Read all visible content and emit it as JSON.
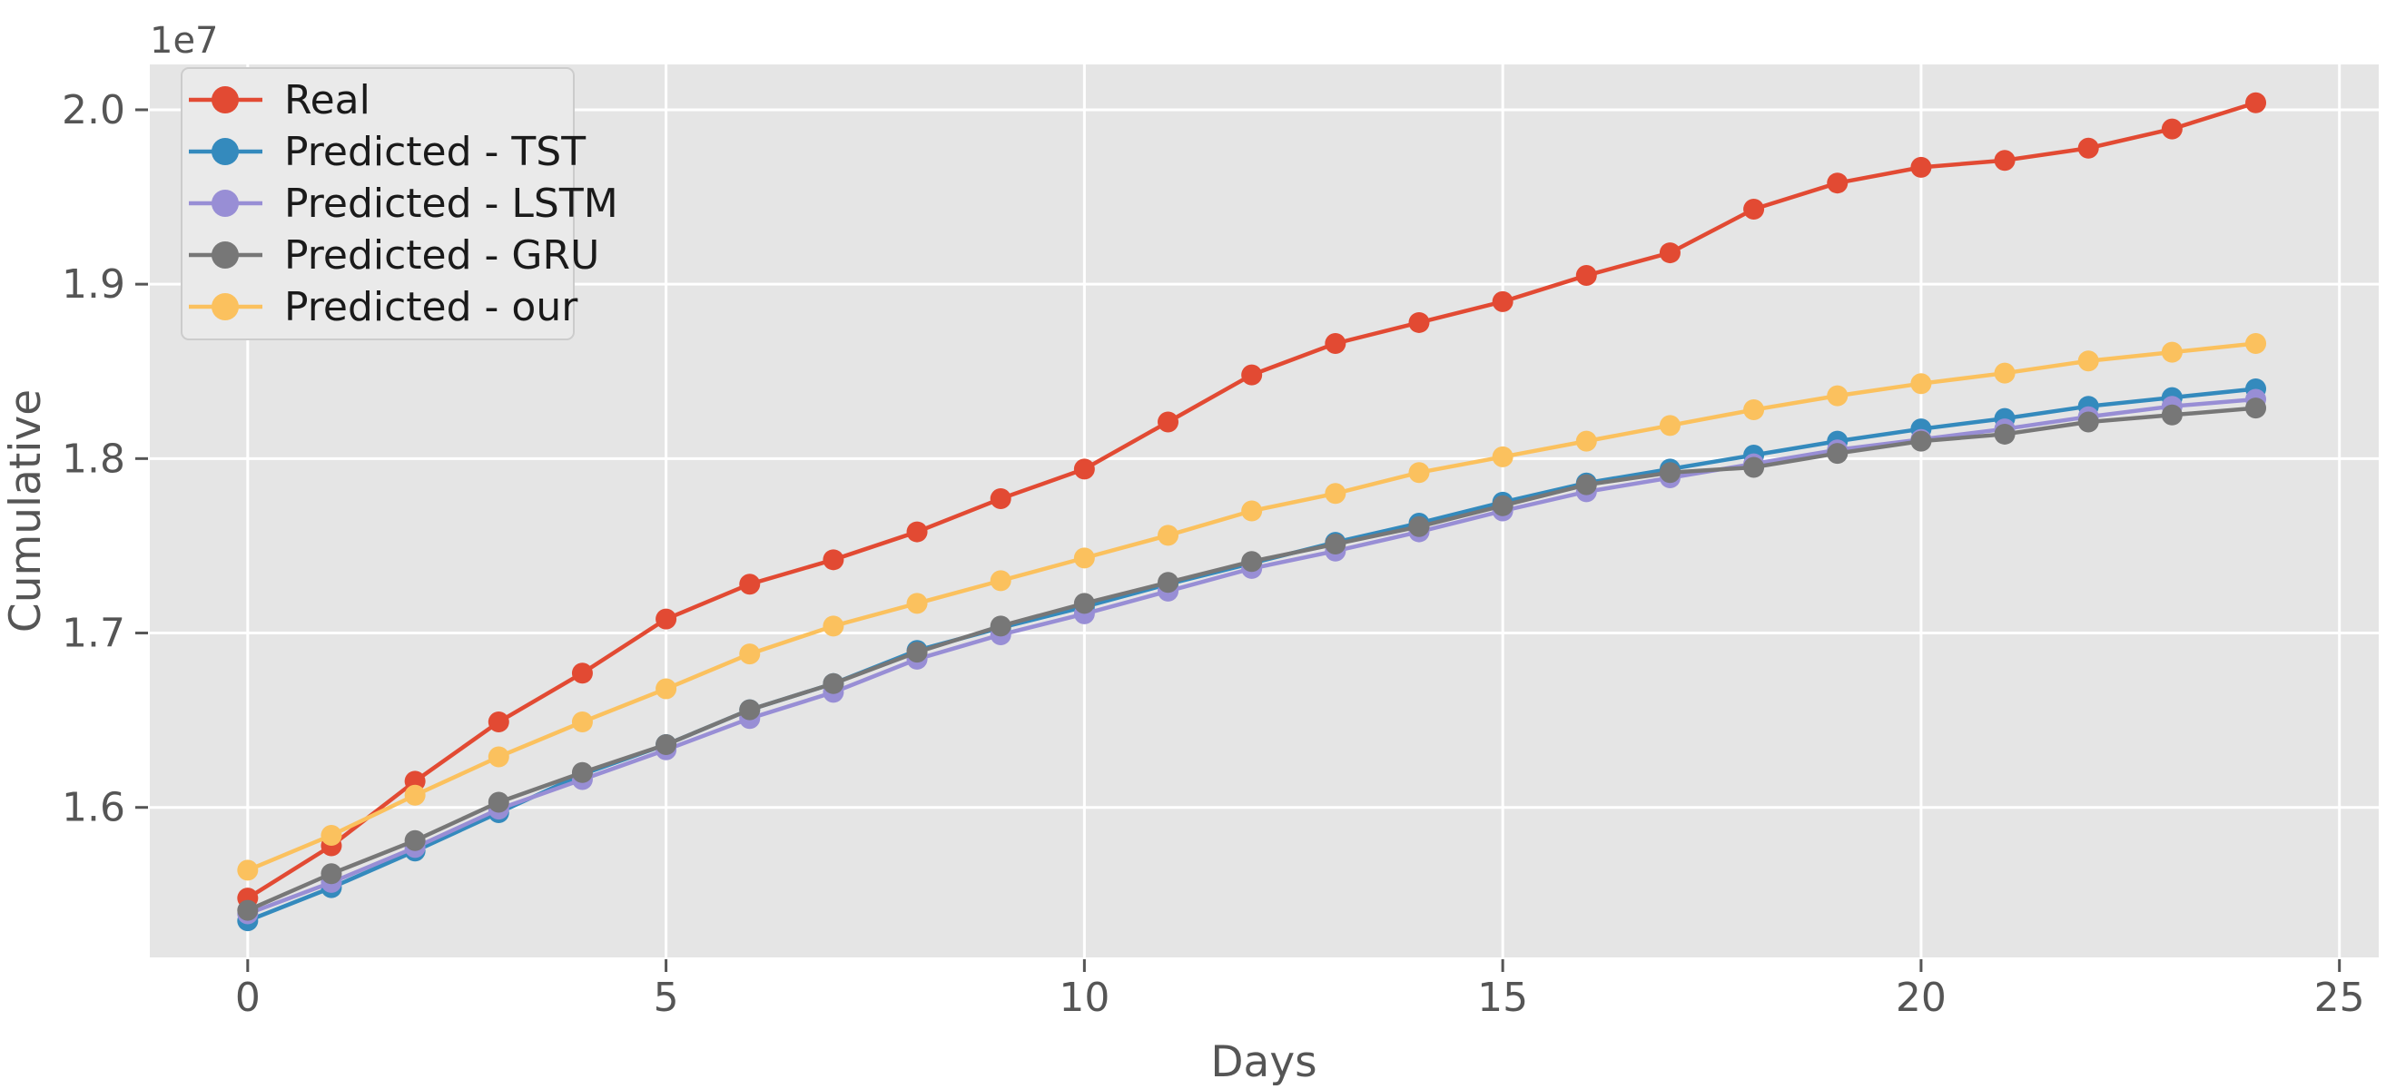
{
  "figure": {
    "offset_label": "1e7",
    "background": "#ffffff",
    "plot_background": "#e5e5e5",
    "grid_color": "#ffffff",
    "tick_color": "#555555",
    "legend_background": "#eaeaea",
    "legend_border": "#cccccc"
  },
  "chart_data": {
    "type": "line",
    "title": "",
    "xlabel": "Days",
    "ylabel": "Cumulative",
    "y_offset_factor": "1e7",
    "grid": true,
    "legend_position": "upper left",
    "x": [
      0,
      1,
      2,
      3,
      4,
      5,
      6,
      7,
      8,
      9,
      10,
      11,
      12,
      13,
      14,
      15,
      16,
      17,
      18,
      19,
      20,
      21,
      22,
      23,
      24
    ],
    "x_ticks": [
      0,
      5,
      10,
      15,
      20,
      25
    ],
    "y_ticks": [
      1.6,
      1.7,
      1.8,
      1.9,
      2.0
    ],
    "xlim": [
      -1.17,
      25.47
    ],
    "ylim": [
      1.514,
      2.026
    ],
    "marker": "circle",
    "series": [
      {
        "name": "Real",
        "color": "#E24A33",
        "values": [
          1.548,
          1.578,
          1.615,
          1.649,
          1.677,
          1.708,
          1.728,
          1.742,
          1.758,
          1.777,
          1.794,
          1.821,
          1.848,
          1.866,
          1.878,
          1.89,
          1.905,
          1.918,
          1.943,
          1.958,
          1.967,
          1.971,
          1.978,
          1.989,
          2.004
        ]
      },
      {
        "name": "Predicted - TST",
        "color": "#348ABD",
        "values": [
          1.535,
          1.554,
          1.575,
          1.597,
          1.619,
          1.636,
          1.656,
          1.671,
          1.69,
          1.703,
          1.715,
          1.728,
          1.74,
          1.752,
          1.763,
          1.775,
          1.786,
          1.794,
          1.802,
          1.81,
          1.817,
          1.823,
          1.83,
          1.835,
          1.84
        ]
      },
      {
        "name": "Predicted - LSTM",
        "color": "#988ED5",
        "values": [
          1.539,
          1.557,
          1.577,
          1.599,
          1.616,
          1.633,
          1.651,
          1.666,
          1.685,
          1.699,
          1.711,
          1.724,
          1.737,
          1.747,
          1.758,
          1.77,
          1.781,
          1.789,
          1.797,
          1.805,
          1.811,
          1.817,
          1.824,
          1.83,
          1.834
        ]
      },
      {
        "name": "Predicted - GRU",
        "color": "#777777",
        "values": [
          1.541,
          1.562,
          1.581,
          1.603,
          1.62,
          1.636,
          1.656,
          1.671,
          1.689,
          1.704,
          1.717,
          1.729,
          1.741,
          1.751,
          1.761,
          1.773,
          1.785,
          1.792,
          1.795,
          1.803,
          1.81,
          1.814,
          1.821,
          1.825,
          1.829
        ]
      },
      {
        "name": "Predicted - our",
        "color": "#FBC15E",
        "values": [
          1.564,
          1.584,
          1.607,
          1.629,
          1.649,
          1.668,
          1.688,
          1.704,
          1.717,
          1.73,
          1.743,
          1.756,
          1.77,
          1.78,
          1.792,
          1.801,
          1.81,
          1.819,
          1.828,
          1.836,
          1.843,
          1.849,
          1.856,
          1.861,
          1.866
        ]
      }
    ]
  }
}
